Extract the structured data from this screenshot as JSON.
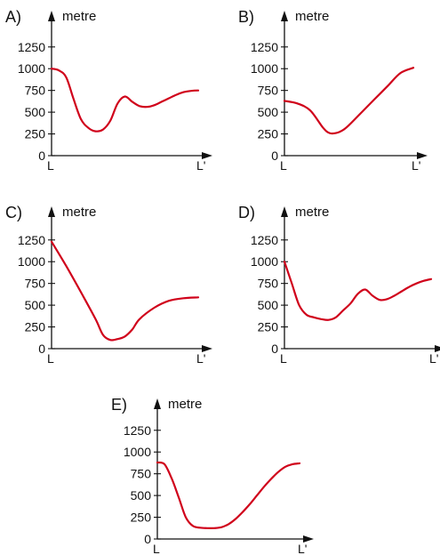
{
  "chart_data": [
    {
      "type": "line",
      "label": "A)",
      "ylabel": "metre",
      "yticks": [
        "0",
        "250",
        "500",
        "750",
        "1000",
        "1250"
      ],
      "ylim": [
        0,
        1350
      ],
      "xticks": [
        "L",
        "L'"
      ],
      "xlim": [
        0,
        1
      ],
      "series": [
        {
          "x": [
            0,
            0.05,
            0.1,
            0.15,
            0.2,
            0.25,
            0.3,
            0.35,
            0.4,
            0.45,
            0.5,
            0.55,
            0.6,
            0.65,
            0.7,
            0.75,
            0.8,
            0.85,
            0.9,
            0.95,
            1.0
          ],
          "y": [
            1000,
            980,
            900,
            650,
            420,
            320,
            280,
            300,
            400,
            600,
            680,
            620,
            570,
            560,
            580,
            620,
            660,
            700,
            730,
            745,
            750
          ]
        }
      ]
    },
    {
      "type": "line",
      "label": "B)",
      "ylabel": "metre",
      "yticks": [
        "0",
        "250",
        "500",
        "750",
        "1000",
        "1250"
      ],
      "ylim": [
        0,
        1350
      ],
      "xticks": [
        "L",
        "L'"
      ],
      "xlim": [
        0,
        1
      ],
      "series": [
        {
          "x": [
            0,
            0.1,
            0.2,
            0.3,
            0.35,
            0.4,
            0.45,
            0.5,
            0.6,
            0.7,
            0.8,
            0.9,
            1.0
          ],
          "y": [
            630,
            600,
            520,
            320,
            260,
            260,
            290,
            350,
            500,
            650,
            800,
            950,
            1010
          ]
        }
      ]
    },
    {
      "type": "line",
      "label": "C)",
      "ylabel": "metre",
      "yticks": [
        "0",
        "250",
        "500",
        "750",
        "1000",
        "1250"
      ],
      "ylim": [
        0,
        1350
      ],
      "xticks": [
        "L",
        "L'"
      ],
      "xlim": [
        0,
        1
      ],
      "series": [
        {
          "x": [
            0,
            0.1,
            0.2,
            0.3,
            0.35,
            0.4,
            0.45,
            0.5,
            0.55,
            0.6,
            0.7,
            0.8,
            0.9,
            1.0
          ],
          "y": [
            1230,
            950,
            650,
            340,
            160,
            100,
            110,
            140,
            220,
            340,
            470,
            550,
            580,
            590
          ]
        }
      ]
    },
    {
      "type": "line",
      "label": "D)",
      "ylabel": "metre",
      "yticks": [
        "0",
        "250",
        "500",
        "750",
        "1000",
        "1250"
      ],
      "ylim": [
        0,
        1350
      ],
      "xticks": [
        "L",
        "L'"
      ],
      "xlim": [
        0,
        1
      ],
      "series": [
        {
          "x": [
            0,
            0.05,
            0.1,
            0.15,
            0.2,
            0.25,
            0.3,
            0.35,
            0.4,
            0.45,
            0.5,
            0.55,
            0.6,
            0.65,
            0.7,
            0.75,
            0.8,
            0.85,
            0.9,
            0.95,
            1.0
          ],
          "y": [
            1000,
            750,
            500,
            390,
            360,
            340,
            330,
            360,
            440,
            520,
            630,
            680,
            610,
            560,
            570,
            610,
            660,
            710,
            750,
            780,
            800
          ]
        }
      ]
    },
    {
      "type": "line",
      "label": "E)",
      "ylabel": "metre",
      "yticks": [
        "0",
        "250",
        "500",
        "750",
        "1000",
        "1250"
      ],
      "ylim": [
        0,
        1350
      ],
      "xticks": [
        "L",
        "L'"
      ],
      "xlim": [
        0,
        1
      ],
      "series": [
        {
          "x": [
            0,
            0.05,
            0.1,
            0.15,
            0.2,
            0.25,
            0.3,
            0.35,
            0.4,
            0.45,
            0.5,
            0.55,
            0.6,
            0.65,
            0.7,
            0.75,
            0.8,
            0.85,
            0.9,
            0.95,
            1.0
          ],
          "y": [
            880,
            860,
            700,
            480,
            250,
            150,
            130,
            125,
            125,
            135,
            170,
            230,
            310,
            400,
            500,
            600,
            690,
            770,
            830,
            860,
            870
          ]
        }
      ]
    }
  ]
}
